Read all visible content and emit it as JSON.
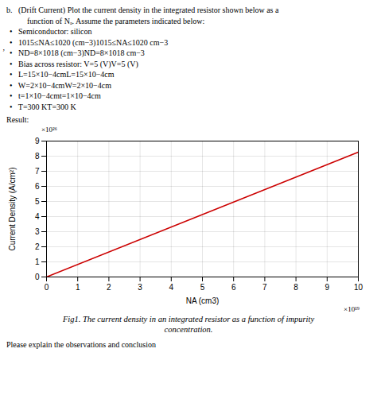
{
  "chart_data": {
    "type": "line",
    "annotations": [
      "b.   (Drift Current) Plot the current density in the integrated resistor shown below as a",
      "function of Nₐ. Assume the parameters indicated below:",
      "•   Semiconductor: silicon",
      "•   1015≤NA≤1020 (cm−3)1015≤NA≤1020 cm−3",
      "•   ND=8×1018 (cm−3)ND=8×1018 cm−3",
      "•   Bias across resistor: V=5 (V)V=5 (V)",
      "•   L=15×10−4cmL=15×10−4cm",
      "•   W=2×10−4cmW=2×10−4cm",
      "•   t=1×10−4cmt=1×10−4cm",
      "•   T=300 KT=300 K",
      "Result:"
    ],
    "side_mark": "’",
    "xlabel": "NA (cm3)",
    "ylabel": "Current Density (A/cm²)",
    "x_multiplier": "×10¹⁹",
    "y_multiplier": "×10²⁶",
    "x": [
      0,
      10
    ],
    "values": [
      0,
      8.27
    ],
    "color": "#cc0000",
    "xlim": [
      0,
      10
    ],
    "ylim": [
      0,
      9
    ],
    "xticks": [
      0,
      1,
      2,
      3,
      4,
      5,
      6,
      7,
      8,
      9,
      10
    ],
    "yticks": [
      0,
      1,
      2,
      3,
      4,
      5,
      6,
      7,
      8,
      9
    ],
    "grid": true,
    "caption": [
      "Fig1. The current density in an integrated resistor as a function of impurity",
      "concentration."
    ],
    "footer": "Please explain the observations and conclusion"
  }
}
